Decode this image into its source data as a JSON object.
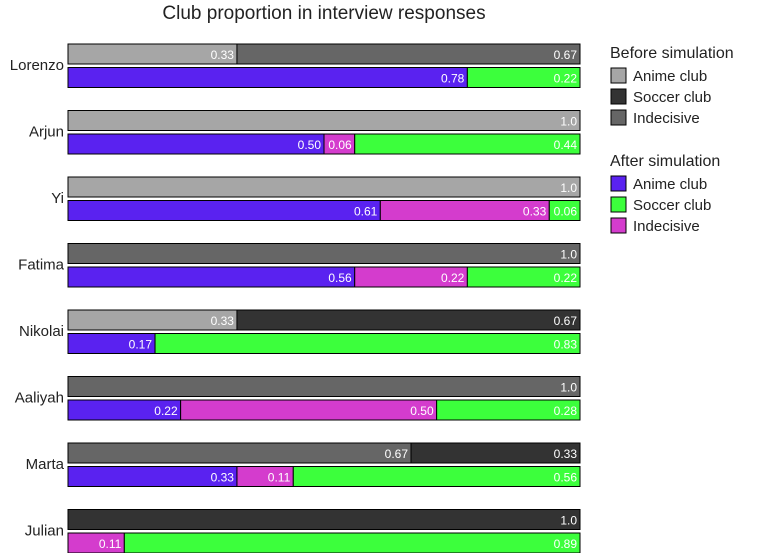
{
  "chart_data": {
    "type": "bar",
    "orientation": "horizontal-stacked",
    "title": "Club proportion in interview responses",
    "colors": {
      "before_anime": "#a6a6a6",
      "before_soccer": "#333333",
      "before_indecisive": "#666666",
      "after_anime": "#5a22f0",
      "after_soccer": "#3cff3c",
      "after_indecisive": "#d43ccd"
    },
    "legend": [
      {
        "heading": "Before simulation",
        "entries": [
          {
            "key": "before_anime",
            "label": "Anime club"
          },
          {
            "key": "before_soccer",
            "label": "Soccer club"
          },
          {
            "key": "before_indecisive",
            "label": "Indecisive"
          }
        ]
      },
      {
        "heading": "After simulation",
        "entries": [
          {
            "key": "after_anime",
            "label": "Anime club"
          },
          {
            "key": "after_soccer",
            "label": "Soccer club"
          },
          {
            "key": "after_indecisive",
            "label": "Indecisive"
          }
        ]
      }
    ],
    "people": [
      {
        "name": "Lorenzo",
        "before": [
          {
            "key": "before_anime",
            "value": 0.33,
            "label": "0.33"
          },
          {
            "key": "before_indecisive",
            "value": 0.67,
            "label": "0.67"
          }
        ],
        "after": [
          {
            "key": "after_anime",
            "value": 0.78,
            "label": "0.78"
          },
          {
            "key": "after_soccer",
            "value": 0.22,
            "label": "0.22"
          }
        ]
      },
      {
        "name": "Arjun",
        "before": [
          {
            "key": "before_anime",
            "value": 1.0,
            "label": "1.0"
          }
        ],
        "after": [
          {
            "key": "after_anime",
            "value": 0.5,
            "label": "0.50"
          },
          {
            "key": "after_indecisive",
            "value": 0.06,
            "label": "0.06"
          },
          {
            "key": "after_soccer",
            "value": 0.44,
            "label": "0.44"
          }
        ]
      },
      {
        "name": "Yi",
        "before": [
          {
            "key": "before_anime",
            "value": 1.0,
            "label": "1.0"
          }
        ],
        "after": [
          {
            "key": "after_anime",
            "value": 0.61,
            "label": "0.61"
          },
          {
            "key": "after_indecisive",
            "value": 0.33,
            "label": "0.33"
          },
          {
            "key": "after_soccer",
            "value": 0.06,
            "label": "0.06"
          }
        ]
      },
      {
        "name": "Fatima",
        "before": [
          {
            "key": "before_indecisive",
            "value": 1.0,
            "label": "1.0"
          }
        ],
        "after": [
          {
            "key": "after_anime",
            "value": 0.56,
            "label": "0.56"
          },
          {
            "key": "after_indecisive",
            "value": 0.22,
            "label": "0.22"
          },
          {
            "key": "after_soccer",
            "value": 0.22,
            "label": "0.22"
          }
        ]
      },
      {
        "name": "Nikolai",
        "before": [
          {
            "key": "before_anime",
            "value": 0.33,
            "label": "0.33"
          },
          {
            "key": "before_soccer",
            "value": 0.67,
            "label": "0.67"
          }
        ],
        "after": [
          {
            "key": "after_anime",
            "value": 0.17,
            "label": "0.17"
          },
          {
            "key": "after_soccer",
            "value": 0.83,
            "label": "0.83"
          }
        ]
      },
      {
        "name": "Aaliyah",
        "before": [
          {
            "key": "before_indecisive",
            "value": 1.0,
            "label": "1.0"
          }
        ],
        "after": [
          {
            "key": "after_anime",
            "value": 0.22,
            "label": "0.22"
          },
          {
            "key": "after_indecisive",
            "value": 0.5,
            "label": "0.50"
          },
          {
            "key": "after_soccer",
            "value": 0.28,
            "label": "0.28"
          }
        ]
      },
      {
        "name": "Marta",
        "before": [
          {
            "key": "before_indecisive",
            "value": 0.67,
            "label": "0.67"
          },
          {
            "key": "before_soccer",
            "value": 0.33,
            "label": "0.33"
          }
        ],
        "after": [
          {
            "key": "after_anime",
            "value": 0.33,
            "label": "0.33"
          },
          {
            "key": "after_indecisive",
            "value": 0.11,
            "label": "0.11"
          },
          {
            "key": "after_soccer",
            "value": 0.56,
            "label": "0.56"
          }
        ]
      },
      {
        "name": "Julian",
        "before": [
          {
            "key": "before_soccer",
            "value": 1.0,
            "label": "1.0"
          }
        ],
        "after": [
          {
            "key": "after_indecisive",
            "value": 0.11,
            "label": "0.11"
          },
          {
            "key": "after_soccer",
            "value": 0.89,
            "label": "0.89"
          }
        ]
      }
    ]
  }
}
